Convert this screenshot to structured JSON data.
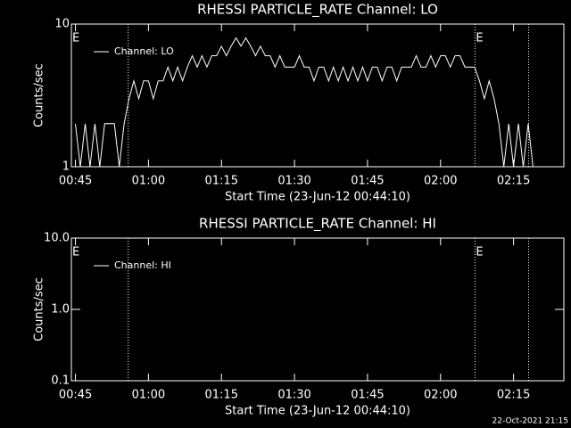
{
  "chart_data": [
    {
      "type": "line",
      "title": "RHESSI PARTICLE_RATE Channel: LO",
      "y_label": "Counts/sec",
      "x_label": "Start Time (23-Jun-12 00:44:10)",
      "log_scale": true,
      "color": "#ffffff",
      "legend": "upper left",
      "xlim": [
        "00:44:10",
        "02:25:20"
      ],
      "xticks": [
        "00:45",
        "01:00",
        "01:15",
        "01:30",
        "01:45",
        "02:00",
        "02:15"
      ],
      "ylim": [
        1,
        10
      ],
      "yticks": [
        1,
        10
      ],
      "annotations": [
        "E",
        "E"
      ],
      "vlines": [
        "00:55:50",
        "02:07:05",
        "02:18:05"
      ],
      "x": [
        "00:45",
        "00:46",
        "00:47",
        "00:48",
        "00:49",
        "00:50",
        "00:51",
        "00:52",
        "00:53",
        "00:54",
        "00:55",
        "00:56",
        "00:57",
        "00:58",
        "00:59",
        "01:00",
        "01:01",
        "01:02",
        "01:03",
        "01:04",
        "01:05",
        "01:06",
        "01:07",
        "01:08",
        "01:09",
        "01:10",
        "01:11",
        "01:12",
        "01:13",
        "01:14",
        "01:15",
        "01:16",
        "01:17",
        "01:18",
        "01:19",
        "01:20",
        "01:21",
        "01:22",
        "01:23",
        "01:24",
        "01:25",
        "01:26",
        "01:27",
        "01:28",
        "01:29",
        "01:30",
        "01:31",
        "01:32",
        "01:33",
        "01:34",
        "01:35",
        "01:36",
        "01:37",
        "01:38",
        "01:39",
        "01:40",
        "01:41",
        "01:42",
        "01:43",
        "01:44",
        "01:45",
        "01:46",
        "01:47",
        "01:48",
        "01:49",
        "01:50",
        "01:51",
        "01:52",
        "01:53",
        "01:54",
        "01:55",
        "01:56",
        "01:57",
        "01:58",
        "01:59",
        "02:00",
        "02:01",
        "02:02",
        "02:03",
        "02:04",
        "02:05",
        "02:06",
        "02:07",
        "02:08",
        "02:09",
        "02:10",
        "02:11",
        "02:12",
        "02:13",
        "02:14",
        "02:15",
        "02:16",
        "02:17",
        "02:18",
        "02:19"
      ],
      "series": [
        {
          "name": "Channel: LO",
          "color": "#ffffff",
          "values": [
            2,
            1,
            2,
            1,
            2,
            1,
            2,
            2,
            2,
            1,
            2,
            3,
            4,
            3,
            4,
            4,
            3,
            4,
            4,
            5,
            4,
            5,
            4,
            5,
            6,
            5,
            6,
            5,
            6,
            6,
            7,
            6,
            7,
            8,
            7,
            8,
            7,
            6,
            7,
            6,
            6,
            5,
            6,
            5,
            5,
            5,
            6,
            5,
            5,
            4,
            5,
            5,
            4,
            5,
            4,
            5,
            4,
            5,
            4,
            5,
            4,
            5,
            5,
            4,
            5,
            5,
            4,
            5,
            5,
            5,
            6,
            5,
            5,
            6,
            5,
            6,
            6,
            5,
            6,
            6,
            5,
            5,
            5,
            4,
            3,
            4,
            3,
            2,
            1,
            2,
            1,
            2,
            1,
            2,
            1
          ]
        }
      ]
    },
    {
      "type": "line",
      "title": "RHESSI PARTICLE_RATE Channel: HI",
      "y_label": "Counts/sec",
      "x_label": "Start Time (23-Jun-12 00:44:10)",
      "log_scale": true,
      "color": "#ffffff",
      "legend": "upper left",
      "xlim": [
        "00:44:10",
        "02:25:20"
      ],
      "xticks": [
        "00:45",
        "01:00",
        "01:15",
        "01:30",
        "01:45",
        "02:00",
        "02:15"
      ],
      "ylim": [
        0.1,
        10
      ],
      "yticks": [
        0.1,
        {
          "value": 1,
          "label": "1.0"
        },
        {
          "value": 10,
          "label": "10.0"
        }
      ],
      "annotations": [
        "E",
        "E"
      ],
      "vlines": [
        "00:55:50",
        "02:07:05",
        "02:18:05"
      ],
      "x": [],
      "series": [
        {
          "name": "Channel: HI",
          "color": "#ffffff",
          "values": []
        }
      ]
    }
  ],
  "footer": "22-Oct-2021 21:15"
}
